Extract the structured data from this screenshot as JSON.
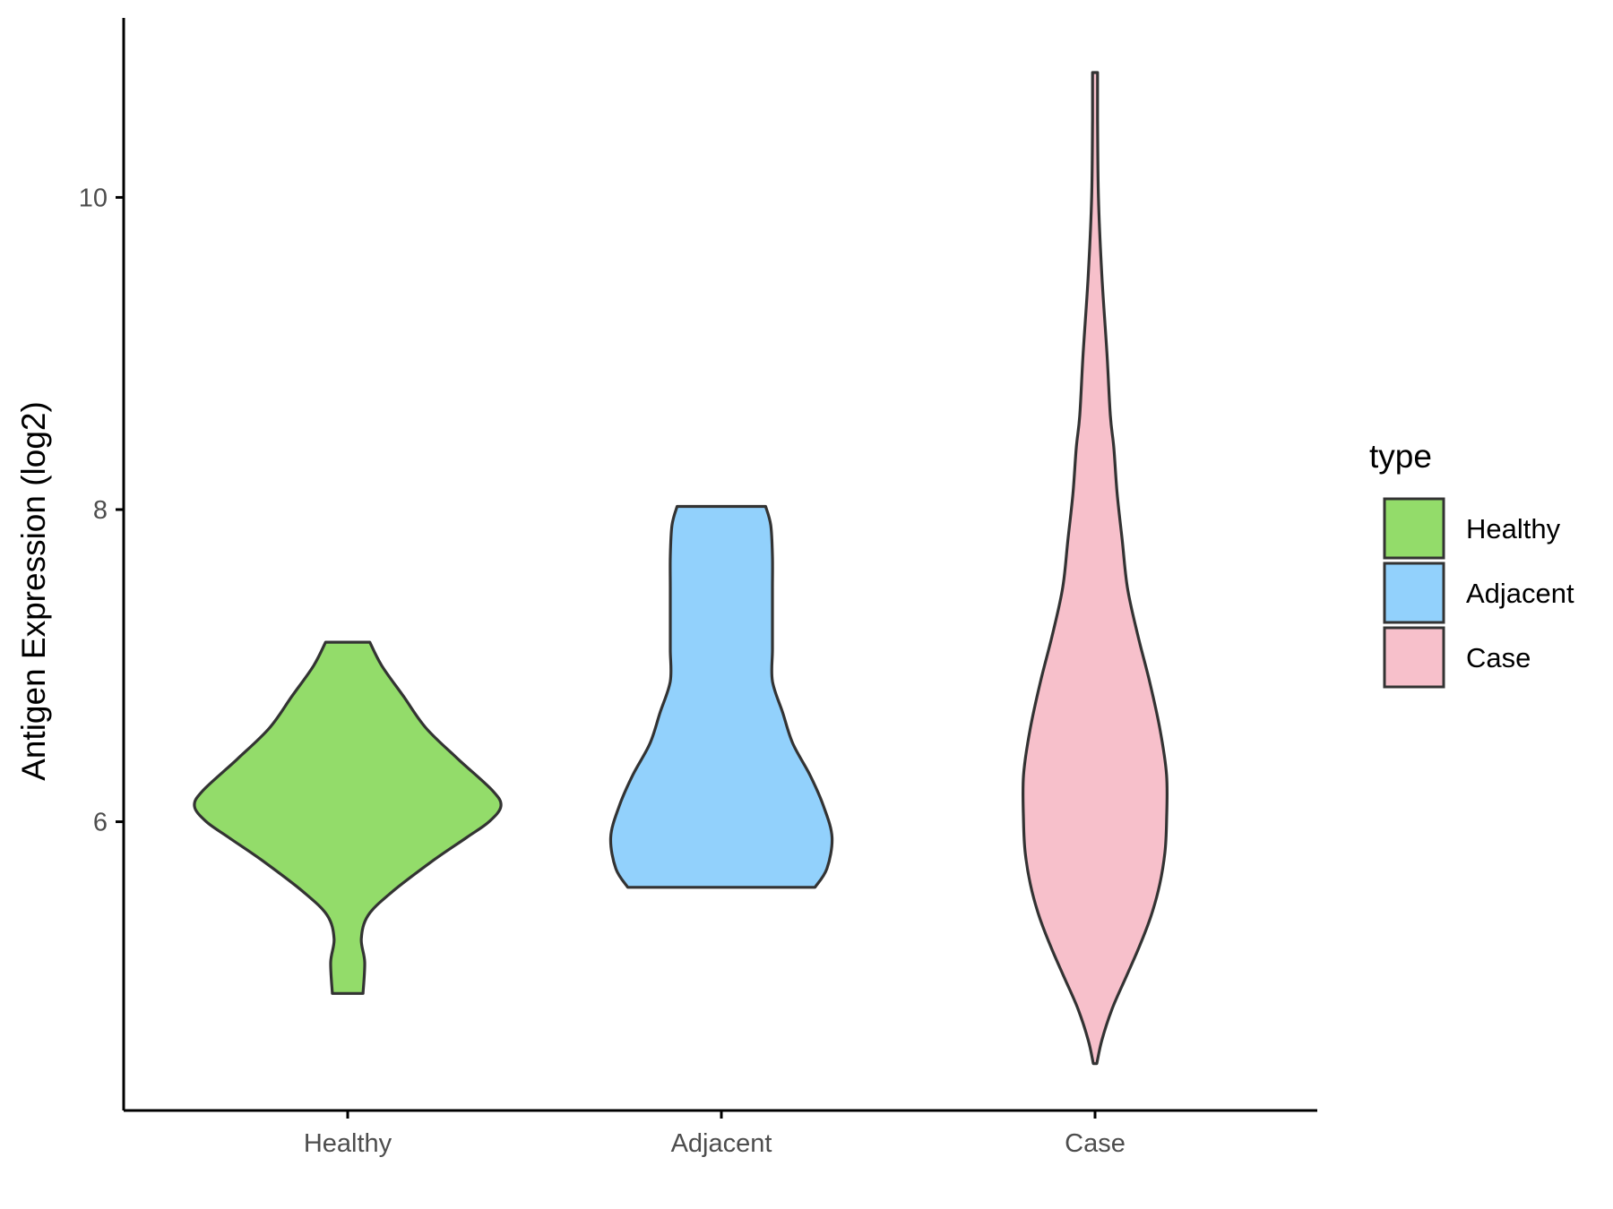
{
  "chart_data": {
    "type": "violin",
    "title": "",
    "xlabel": "",
    "ylabel": "Antigen Expression (log2)",
    "ylim": [
      4.15,
      11.15
    ],
    "yticks": [
      6,
      8,
      10
    ],
    "categories": [
      "Healthy",
      "Adjacent",
      "Case"
    ],
    "legend": {
      "title": "type",
      "position": "right",
      "entries": [
        "Healthy",
        "Adjacent",
        "Case"
      ]
    },
    "grid": false,
    "series": [
      {
        "name": "Healthy",
        "color": "#93dc6a",
        "range": [
          4.9,
          7.15
        ],
        "profile": [
          [
            4.9,
            0.09
          ],
          [
            5.1,
            0.1
          ],
          [
            5.25,
            0.08
          ],
          [
            5.4,
            0.12
          ],
          [
            5.55,
            0.26
          ],
          [
            5.75,
            0.5
          ],
          [
            5.9,
            0.7
          ],
          [
            6.0,
            0.83
          ],
          [
            6.1,
            0.9
          ],
          [
            6.2,
            0.85
          ],
          [
            6.4,
            0.65
          ],
          [
            6.6,
            0.46
          ],
          [
            6.8,
            0.33
          ],
          [
            7.0,
            0.2
          ],
          [
            7.15,
            0.13
          ]
        ]
      },
      {
        "name": "Adjacent",
        "color": "#92d1fc",
        "range": [
          5.58,
          8.02
        ],
        "profile": [
          [
            5.58,
            0.55
          ],
          [
            5.7,
            0.62
          ],
          [
            5.9,
            0.65
          ],
          [
            6.1,
            0.6
          ],
          [
            6.3,
            0.52
          ],
          [
            6.5,
            0.42
          ],
          [
            6.7,
            0.36
          ],
          [
            6.9,
            0.3
          ],
          [
            7.1,
            0.3
          ],
          [
            7.3,
            0.3
          ],
          [
            7.5,
            0.3
          ],
          [
            7.7,
            0.3
          ],
          [
            7.9,
            0.29
          ],
          [
            8.02,
            0.26
          ]
        ]
      },
      {
        "name": "Case",
        "color": "#f7c0cb",
        "range": [
          4.45,
          10.8
        ],
        "profile": [
          [
            4.45,
            0.01
          ],
          [
            4.6,
            0.04
          ],
          [
            4.8,
            0.1
          ],
          [
            5.0,
            0.18
          ],
          [
            5.2,
            0.26
          ],
          [
            5.4,
            0.33
          ],
          [
            5.6,
            0.38
          ],
          [
            5.8,
            0.41
          ],
          [
            6.0,
            0.42
          ],
          [
            6.3,
            0.42
          ],
          [
            6.6,
            0.38
          ],
          [
            6.9,
            0.32
          ],
          [
            7.2,
            0.25
          ],
          [
            7.5,
            0.19
          ],
          [
            7.8,
            0.16
          ],
          [
            8.1,
            0.13
          ],
          [
            8.4,
            0.11
          ],
          [
            8.6,
            0.09
          ],
          [
            9.0,
            0.07
          ],
          [
            9.5,
            0.04
          ],
          [
            10.0,
            0.02
          ],
          [
            10.5,
            0.015
          ],
          [
            10.8,
            0.015
          ]
        ]
      }
    ]
  }
}
